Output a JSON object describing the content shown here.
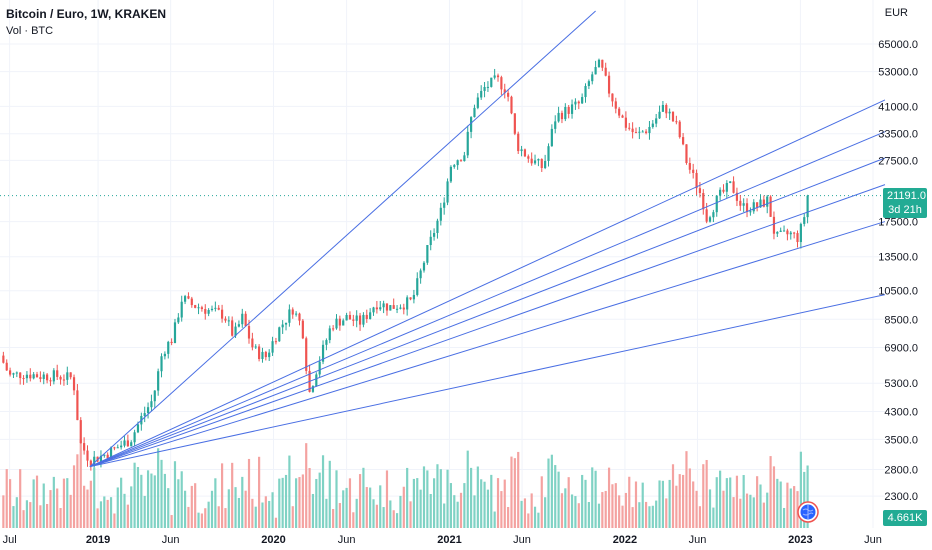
{
  "legend": {
    "title": "Bitcoin / Euro, 1W, KRAKEN",
    "volume_label": "Vol · BTC"
  },
  "axis": {
    "currency": "EUR"
  },
  "last_price": {
    "value": "21191.0",
    "countdown": "3d 21h",
    "color": "#22ab94"
  },
  "volume_value": "4.661K",
  "colors": {
    "up": "#26a69a",
    "down": "#ef5350",
    "up_volume": "#7fd2c4",
    "down_volume": "#f4a2a0",
    "fan_line": "#4a6fe3",
    "grid": "#f0f3fa"
  },
  "chart_data": {
    "type": "candlestick",
    "title": "Bitcoin / Euro, 1W, KRAKEN",
    "y_scale": "log",
    "ylim": [
      1900,
      90000
    ],
    "y_ticks": [
      "65000.0",
      "53000.0",
      "41000.0",
      "33500.0",
      "27500.0",
      "17500.0",
      "13500.0",
      "10500.0",
      "8500.0",
      "6900.0",
      "5300.0",
      "4300.0",
      "3500.0",
      "2800.0",
      "2300.0"
    ],
    "x_ticks": [
      {
        "label": "Jul",
        "year": false
      },
      {
        "label": "2019",
        "year": true
      },
      {
        "label": "Jun",
        "year": false
      },
      {
        "label": "2020",
        "year": true
      },
      {
        "label": "Jun",
        "year": false
      },
      {
        "label": "2021",
        "year": true
      },
      {
        "label": "Jun",
        "year": false
      },
      {
        "label": "2022",
        "year": true
      },
      {
        "label": "Jun",
        "year": false
      },
      {
        "label": "2023",
        "year": true
      },
      {
        "label": "Jun",
        "year": false
      }
    ],
    "x_range": [
      "2018-06-11",
      "2023-06-26"
    ],
    "price_series": [
      [
        "2018-06-11",
        6500
      ],
      [
        "2018-07-01",
        5600
      ],
      [
        "2018-08-01",
        5700
      ],
      [
        "2018-09-01",
        5600
      ],
      [
        "2018-10-01",
        5600
      ],
      [
        "2018-11-10",
        5500
      ],
      [
        "2018-11-25",
        3400
      ],
      [
        "2018-12-15",
        3000
      ],
      [
        "2019-01-10",
        3100
      ],
      [
        "2019-02-10",
        3300
      ],
      [
        "2019-03-10",
        3500
      ],
      [
        "2019-04-01",
        4100
      ],
      [
        "2019-04-25",
        4700
      ],
      [
        "2019-05-15",
        6700
      ],
      [
        "2019-06-05",
        7400
      ],
      [
        "2019-06-25",
        10000
      ],
      [
        "2019-07-10",
        9500
      ],
      [
        "2019-08-01",
        9300
      ],
      [
        "2019-08-25",
        9000
      ],
      [
        "2019-09-20",
        8800
      ],
      [
        "2019-10-10",
        7500
      ],
      [
        "2019-10-28",
        8600
      ],
      [
        "2019-11-20",
        6800
      ],
      [
        "2019-12-15",
        6400
      ],
      [
        "2020-01-10",
        7800
      ],
      [
        "2020-02-10",
        9200
      ],
      [
        "2020-03-01",
        8000
      ],
      [
        "2020-03-15",
        4900
      ],
      [
        "2020-04-01",
        6000
      ],
      [
        "2020-05-01",
        8200
      ],
      [
        "2020-06-01",
        8600
      ],
      [
        "2020-07-01",
        8300
      ],
      [
        "2020-08-01",
        9600
      ],
      [
        "2020-09-01",
        9300
      ],
      [
        "2020-10-15",
        9700
      ],
      [
        "2020-11-15",
        14000
      ],
      [
        "2020-12-15",
        19000
      ],
      [
        "2021-01-05",
        27000
      ],
      [
        "2021-02-01",
        29000
      ],
      [
        "2021-02-20",
        41000
      ],
      [
        "2021-03-15",
        47000
      ],
      [
        "2021-04-10",
        50000
      ],
      [
        "2021-05-01",
        46000
      ],
      [
        "2021-05-20",
        31000
      ],
      [
        "2021-06-15",
        28000
      ],
      [
        "2021-07-15",
        26000
      ],
      [
        "2021-08-10",
        38000
      ],
      [
        "2021-09-05",
        40000
      ],
      [
        "2021-10-01",
        42000
      ],
      [
        "2021-10-25",
        52000
      ],
      [
        "2021-11-10",
        56000
      ],
      [
        "2021-12-01",
        45000
      ],
      [
        "2022-01-01",
        36000
      ],
      [
        "2022-01-25",
        33000
      ],
      [
        "2022-02-20",
        35000
      ],
      [
        "2022-03-25",
        41000
      ],
      [
        "2022-04-20",
        35000
      ],
      [
        "2022-05-10",
        27000
      ],
      [
        "2022-06-10",
        21000
      ],
      [
        "2022-06-20",
        18000
      ],
      [
        "2022-07-15",
        21000
      ],
      [
        "2022-08-10",
        23000
      ],
      [
        "2022-09-01",
        19500
      ],
      [
        "2022-10-01",
        19500
      ],
      [
        "2022-10-25",
        20500
      ],
      [
        "2022-11-10",
        15500
      ],
      [
        "2022-12-10",
        16000
      ],
      [
        "2022-12-28",
        15500
      ],
      [
        "2023-01-12",
        19000
      ],
      [
        "2023-01-22",
        21191
      ]
    ],
    "last_close": 21191.0,
    "volume_last": "4.661K",
    "fan_lines": [
      {
        "from": [
          "2018-12-15",
          2860
        ],
        "to": [
          "2021-11-01",
          83000
        ]
      },
      {
        "from": [
          "2018-12-15",
          2860
        ],
        "to": [
          "2023-06-26",
          43000
        ]
      },
      {
        "from": [
          "2018-12-15",
          2860
        ],
        "to": [
          "2023-06-26",
          34000
        ]
      },
      {
        "from": [
          "2018-12-15",
          2860
        ],
        "to": [
          "2023-06-26",
          28000
        ]
      },
      {
        "from": [
          "2018-12-15",
          2860
        ],
        "to": [
          "2023-06-26",
          23000
        ]
      },
      {
        "from": [
          "2018-12-15",
          2860
        ],
        "to": [
          "2023-06-26",
          17500
        ]
      },
      {
        "from": [
          "2018-12-15",
          2860
        ],
        "to": [
          "2023-06-26",
          10200
        ]
      }
    ]
  }
}
